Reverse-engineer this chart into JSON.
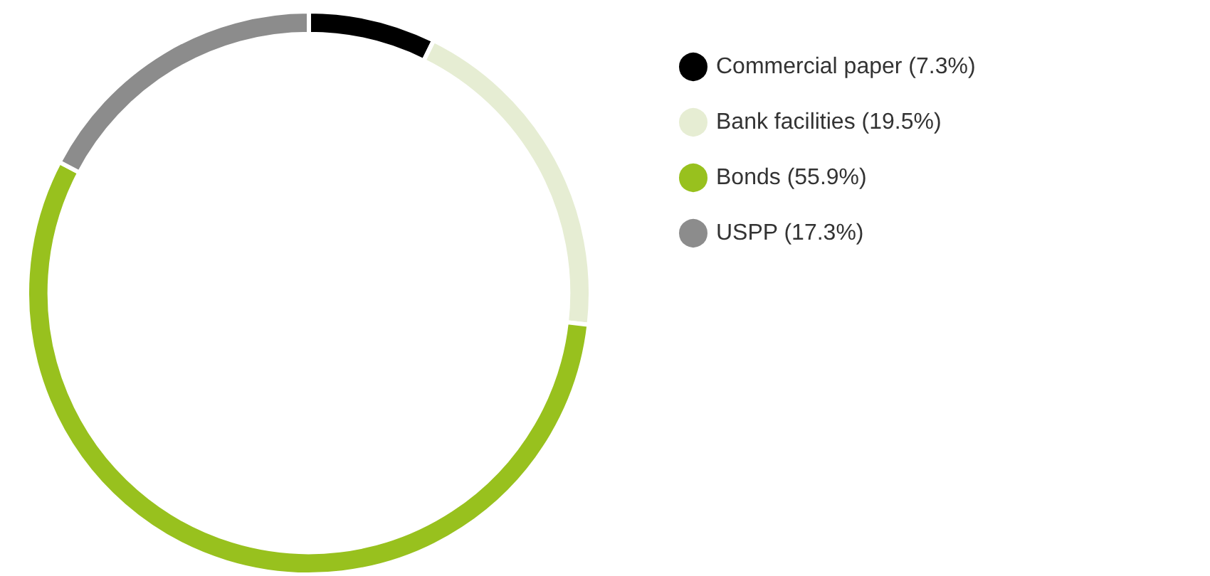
{
  "chart_data": {
    "type": "donut",
    "categories": [
      "Commercial paper (7.3%)",
      "Bank facilities (19.5%)",
      "Bonds (55.9%)",
      "USPP (17.3%)"
    ],
    "values": [
      7.3,
      19.5,
      55.9,
      17.3
    ],
    "colors": [
      "#000000",
      "#e6edd3",
      "#98c11e",
      "#8c8c8c"
    ],
    "legend": "right"
  }
}
